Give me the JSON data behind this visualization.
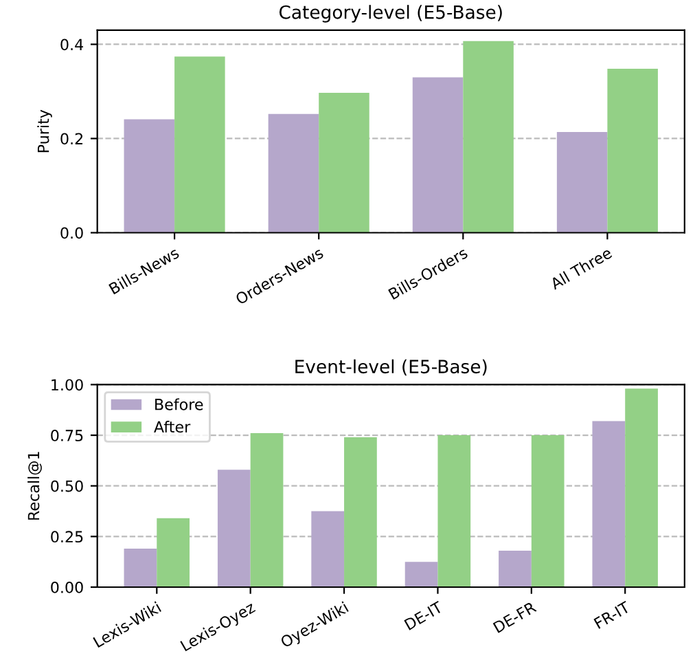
{
  "chart_data": [
    {
      "type": "bar",
      "title": "Category-level (E5-Base)",
      "ylabel": "Purity",
      "categories": [
        "Bills-News",
        "Orders-News",
        "Bills-Orders",
        "All Three"
      ],
      "series": [
        {
          "color": "#b5a7cb",
          "values": [
            0.241,
            0.252,
            0.33,
            0.214
          ]
        },
        {
          "color": "#93d086",
          "values": [
            0.374,
            0.297,
            0.407,
            0.348
          ]
        }
      ],
      "ylim": [
        0,
        0.43
      ],
      "yticks": [
        {
          "value": 0,
          "label": "0.0"
        },
        0.2,
        0.4
      ],
      "grid": "y",
      "legend": false
    },
    {
      "type": "bar",
      "title": "Event-level (E5-Base)",
      "ylabel": "Recall@1",
      "categories": [
        "Lexis-Wiki",
        "Lexis-Oyez",
        "Oyez-Wiki",
        "DE-IT",
        "DE-FR",
        "FR-IT"
      ],
      "series": [
        {
          "name": "Before",
          "color": "#b5a7cb",
          "values": [
            0.19,
            0.58,
            0.375,
            0.125,
            0.18,
            0.82
          ]
        },
        {
          "name": "After",
          "color": "#93d086",
          "values": [
            0.34,
            0.76,
            0.74,
            0.75,
            0.75,
            0.98
          ]
        }
      ],
      "ylim": [
        0,
        1.0
      ],
      "yticks": [
        {
          "value": 0,
          "label": "0.00"
        },
        {
          "value": 0.25,
          "label": "0.25"
        },
        {
          "value": 0.5,
          "label": "0.50"
        },
        {
          "value": 0.75,
          "label": "0.75"
        },
        {
          "value": 1,
          "label": "1.00"
        }
      ],
      "grid": "y",
      "legend": "top left"
    }
  ]
}
